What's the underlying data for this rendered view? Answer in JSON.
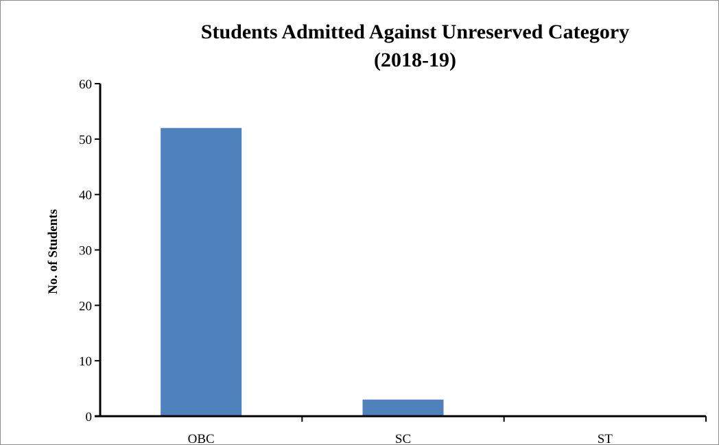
{
  "chart_data": {
    "type": "bar",
    "title": "Students Admitted Against Unreserved Category",
    "subtitle": "(2018-19)",
    "xlabel": "",
    "ylabel": "No. of Students",
    "categories": [
      "OBC",
      "SC",
      "ST"
    ],
    "values": [
      52,
      3,
      0
    ],
    "ylim": [
      0,
      60
    ],
    "yticks": [
      "0",
      "10",
      "20",
      "30",
      "40",
      "50",
      "60"
    ],
    "bar_color": "#4f81bd",
    "grid": false,
    "legend": "none"
  }
}
